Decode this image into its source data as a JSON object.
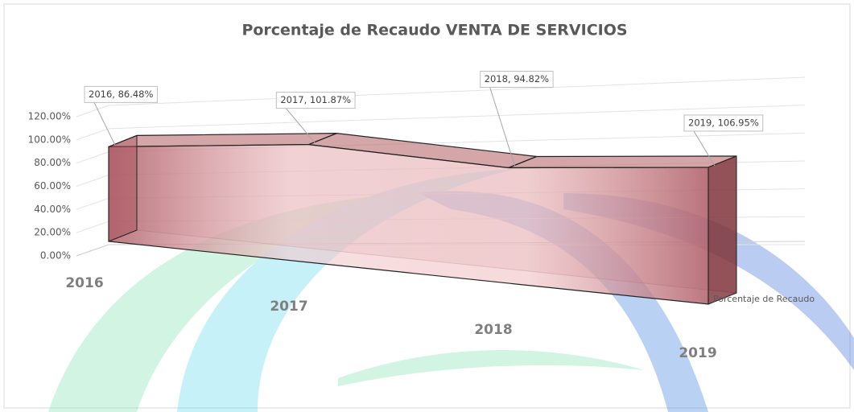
{
  "chart_data": {
    "type": "area3d",
    "title": "Porcentaje de Recaudo VENTA DE SERVICIOS",
    "categories": [
      "2016",
      "2017",
      "2018",
      "2019"
    ],
    "series": [
      {
        "name": "Porcentaje de Recaudo",
        "color": "#c0787c",
        "values": [
          86.48,
          101.87,
          94.82,
          106.95
        ],
        "value_labels": [
          "2016, 86.48%",
          "2017, 101.87%",
          "2018, 94.82%",
          "2019, 106.95%"
        ]
      }
    ],
    "ylim": [
      0,
      120
    ],
    "yticks": [
      {
        "value": 0,
        "label": "0.00%"
      },
      {
        "value": 20,
        "label": "20.00%"
      },
      {
        "value": 40,
        "label": "40.00%"
      },
      {
        "value": 60,
        "label": "60.00%"
      },
      {
        "value": 80,
        "label": "80.00%"
      },
      {
        "value": 100,
        "label": "100.00%"
      },
      {
        "value": 120,
        "label": "120.00%"
      }
    ],
    "grid": true
  }
}
